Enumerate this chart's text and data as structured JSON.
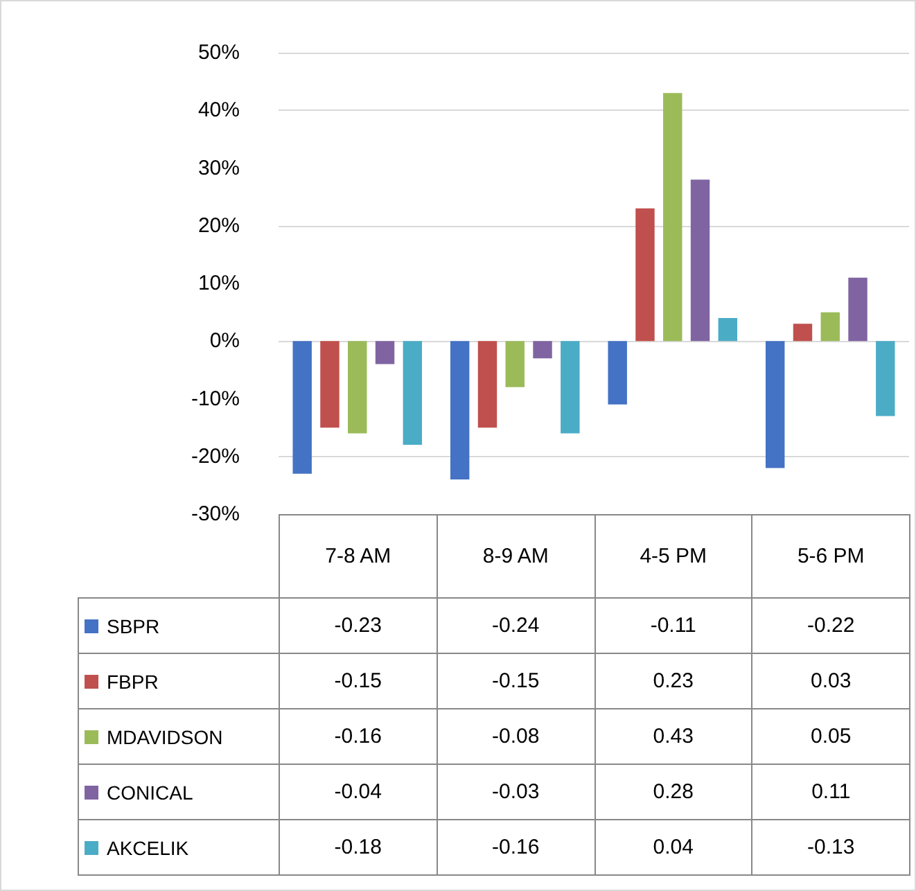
{
  "chart_data": {
    "type": "bar",
    "categories": [
      "7-8 AM",
      "8-9 AM",
      "4-5 PM",
      "5-6 PM"
    ],
    "series": [
      {
        "name": "SBPR",
        "color": "#4472c4",
        "values": [
          -0.23,
          -0.24,
          -0.11,
          -0.22
        ]
      },
      {
        "name": "FBPR",
        "color": "#c0504d",
        "values": [
          -0.15,
          -0.15,
          0.23,
          0.03
        ]
      },
      {
        "name": "MDAVIDSON",
        "color": "#9bbb59",
        "values": [
          -0.16,
          -0.08,
          0.43,
          0.05
        ]
      },
      {
        "name": "CONICAL",
        "color": "#8064a2",
        "values": [
          -0.04,
          -0.03,
          0.28,
          0.11
        ]
      },
      {
        "name": "AKCELIK",
        "color": "#4bacc6",
        "values": [
          -0.18,
          -0.16,
          0.04,
          -0.13
        ]
      }
    ],
    "ylim": [
      -0.3,
      0.5
    ],
    "yticks": [
      {
        "value": -0.3,
        "label": "-30%"
      },
      {
        "value": -0.2,
        "label": "-20%"
      },
      {
        "value": -0.1,
        "label": "-10%"
      },
      {
        "value": 0,
        "label": "0%"
      },
      {
        "value": 0.1,
        "label": "10%"
      },
      {
        "value": 0.2,
        "label": "20%"
      },
      {
        "value": 0.3,
        "label": "30%"
      },
      {
        "value": 0.4,
        "label": "40%"
      },
      {
        "value": 0.5,
        "label": "50%"
      }
    ],
    "grid": true,
    "data_labels": true,
    "legend": "bottom left"
  }
}
